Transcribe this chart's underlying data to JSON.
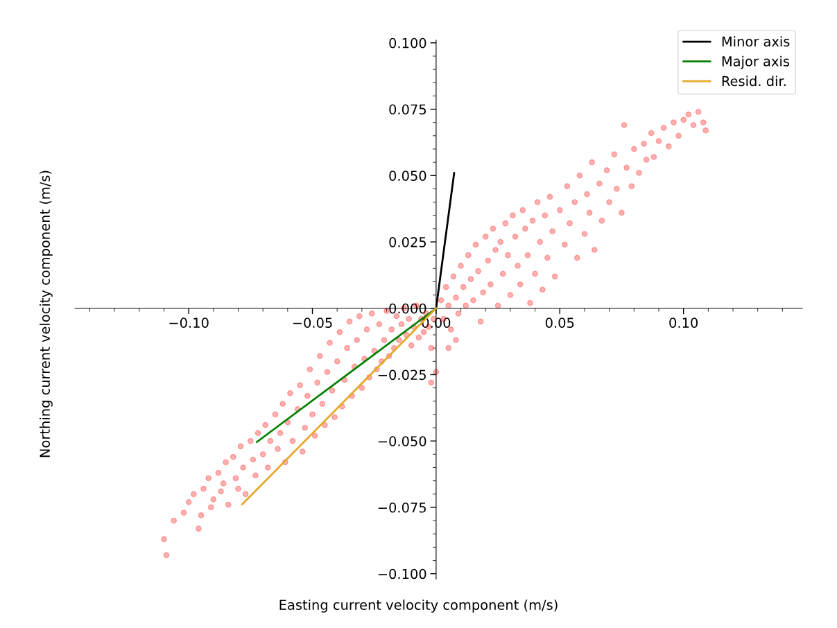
{
  "chart_data": {
    "type": "scatter",
    "xlabel": "Easting current velocity component (m/s)",
    "ylabel": "Northing current velocity component (m/s)",
    "xlim": [
      -0.146,
      0.148
    ],
    "ylim": [
      -0.102,
      0.101
    ],
    "xticks": [
      {
        "value": -0.1,
        "label": "−0.10"
      },
      {
        "value": -0.05,
        "label": "−0.05"
      },
      {
        "value": 0,
        "label": "0.00"
      },
      {
        "value": 0.05,
        "label": "0.05"
      },
      {
        "value": 0.1,
        "label": "0.10"
      }
    ],
    "yticks": [
      {
        "value": -0.1,
        "label": "−0.100"
      },
      {
        "value": -0.075,
        "label": "−0.075"
      },
      {
        "value": -0.05,
        "label": "−0.050"
      },
      {
        "value": -0.025,
        "label": "−0.025"
      },
      {
        "value": 0,
        "label": "0.000"
      },
      {
        "value": 0.025,
        "label": "0.025"
      },
      {
        "value": 0.05,
        "label": "0.050"
      },
      {
        "value": 0.075,
        "label": "0.075"
      },
      {
        "value": 0.1,
        "label": "0.100"
      }
    ],
    "grid": false,
    "legend": "top right",
    "series": [
      {
        "color": "#ff0000",
        "marker": "circle",
        "x": [
          -0.11,
          -0.109,
          -0.106,
          -0.102,
          -0.1,
          -0.098,
          -0.096,
          -0.095,
          -0.094,
          -0.092,
          -0.091,
          -0.09,
          -0.088,
          -0.087,
          -0.086,
          -0.085,
          -0.084,
          -0.082,
          -0.081,
          -0.08,
          -0.079,
          -0.078,
          -0.077,
          -0.075,
          -0.074,
          -0.073,
          -0.072,
          -0.07,
          -0.069,
          -0.068,
          -0.067,
          -0.065,
          -0.064,
          -0.063,
          -0.062,
          -0.061,
          -0.06,
          -0.059,
          -0.058,
          -0.056,
          -0.055,
          -0.054,
          -0.053,
          -0.052,
          -0.051,
          -0.05,
          -0.049,
          -0.048,
          -0.047,
          -0.046,
          -0.045,
          -0.044,
          -0.043,
          -0.042,
          -0.041,
          -0.04,
          -0.039,
          -0.038,
          -0.037,
          -0.036,
          -0.035,
          -0.034,
          -0.033,
          -0.032,
          -0.031,
          -0.03,
          -0.029,
          -0.028,
          -0.027,
          -0.026,
          -0.025,
          -0.024,
          -0.023,
          -0.022,
          -0.021,
          -0.02,
          -0.019,
          -0.018,
          -0.017,
          -0.016,
          -0.015,
          -0.014,
          -0.013,
          -0.012,
          -0.011,
          -0.01,
          -0.009,
          -0.008,
          -0.007,
          -0.006,
          -0.005,
          -0.004,
          -0.003,
          -0.002,
          -0.001,
          0.0,
          -0.002,
          0.002,
          0.003,
          0.004,
          0.005,
          0.006,
          0.007,
          0.008,
          0.009,
          0.01,
          0.011,
          0.012,
          0.013,
          0.014,
          0.015,
          0.016,
          0.017,
          0.018,
          0.019,
          0.02,
          0.021,
          0.022,
          0.023,
          0.024,
          0.025,
          0.026,
          0.027,
          0.028,
          0.029,
          0.03,
          0.031,
          0.032,
          0.033,
          0.034,
          0.035,
          0.036,
          0.037,
          0.038,
          0.039,
          0.04,
          0.041,
          0.042,
          0.043,
          0.044,
          0.045,
          0.046,
          0.047,
          0.048,
          0.05,
          0.052,
          0.053,
          0.054,
          0.056,
          0.057,
          0.058,
          0.06,
          0.061,
          0.062,
          0.063,
          0.064,
          0.066,
          0.067,
          0.069,
          0.07,
          0.072,
          0.073,
          0.075,
          0.076,
          0.077,
          0.079,
          0.08,
          0.082,
          0.084,
          0.085,
          0.087,
          0.088,
          0.09,
          0.092,
          0.094,
          0.096,
          0.098,
          0.1,
          0.102,
          0.104,
          0.106,
          0.108,
          0.109,
          0.005,
          0.008
        ],
        "values": [
          -0.087,
          -0.093,
          -0.08,
          -0.077,
          -0.073,
          -0.07,
          -0.083,
          -0.078,
          -0.068,
          -0.064,
          -0.075,
          -0.072,
          -0.062,
          -0.069,
          -0.066,
          -0.058,
          -0.074,
          -0.056,
          -0.064,
          -0.068,
          -0.052,
          -0.06,
          -0.07,
          -0.05,
          -0.057,
          -0.063,
          -0.047,
          -0.055,
          -0.044,
          -0.06,
          -0.05,
          -0.04,
          -0.053,
          -0.047,
          -0.036,
          -0.058,
          -0.043,
          -0.032,
          -0.05,
          -0.038,
          -0.029,
          -0.054,
          -0.045,
          -0.033,
          -0.023,
          -0.04,
          -0.048,
          -0.028,
          -0.018,
          -0.036,
          -0.044,
          -0.024,
          -0.013,
          -0.031,
          -0.041,
          -0.02,
          -0.009,
          -0.037,
          -0.027,
          -0.015,
          -0.005,
          -0.033,
          -0.022,
          -0.012,
          -0.003,
          -0.03,
          -0.019,
          -0.008,
          -0.026,
          -0.002,
          -0.016,
          -0.023,
          -0.006,
          -0.02,
          -0.012,
          -0.001,
          -0.018,
          -0.008,
          -0.015,
          -0.003,
          -0.012,
          -0.006,
          0.0,
          -0.01,
          -0.004,
          -0.014,
          -0.007,
          0.001,
          -0.011,
          -0.004,
          -0.009,
          -0.002,
          -0.007,
          -0.015,
          -0.004,
          -0.024,
          -0.028,
          0.003,
          -0.004,
          0.008,
          0.001,
          -0.008,
          0.012,
          0.004,
          -0.002,
          0.016,
          0.008,
          0.001,
          0.02,
          0.011,
          0.003,
          0.024,
          0.014,
          -0.005,
          0.006,
          0.027,
          0.018,
          0.009,
          0.03,
          0.022,
          0.001,
          0.025,
          0.013,
          0.032,
          0.02,
          0.005,
          0.035,
          0.027,
          0.016,
          0.009,
          0.037,
          0.03,
          0.02,
          0.002,
          0.033,
          0.013,
          0.04,
          0.025,
          0.007,
          0.035,
          0.019,
          0.042,
          0.029,
          0.012,
          0.037,
          0.024,
          0.046,
          0.032,
          0.04,
          0.019,
          0.05,
          0.028,
          0.043,
          0.036,
          0.055,
          0.022,
          0.047,
          0.033,
          0.052,
          0.04,
          0.058,
          0.045,
          0.036,
          0.069,
          0.053,
          0.046,
          0.06,
          0.051,
          0.062,
          0.056,
          0.066,
          0.057,
          0.063,
          0.068,
          0.061,
          0.07,
          0.065,
          0.071,
          0.073,
          0.069,
          0.074,
          0.07,
          0.067,
          -0.015,
          -0.012
        ]
      },
      {
        "type": "line",
        "name": "Minor axis",
        "color": "#000000",
        "x": [
          0,
          0.0073
        ],
        "values": [
          0,
          0.051
        ]
      },
      {
        "type": "line",
        "name": "Major axis",
        "color": "#008000",
        "x": [
          0,
          -0.0725
        ],
        "values": [
          0,
          -0.0504
        ]
      },
      {
        "type": "line",
        "name": "Resid. dir.",
        "color": "#e5a92a",
        "x": [
          0,
          -0.0784
        ],
        "values": [
          0,
          -0.0739
        ]
      }
    ]
  }
}
